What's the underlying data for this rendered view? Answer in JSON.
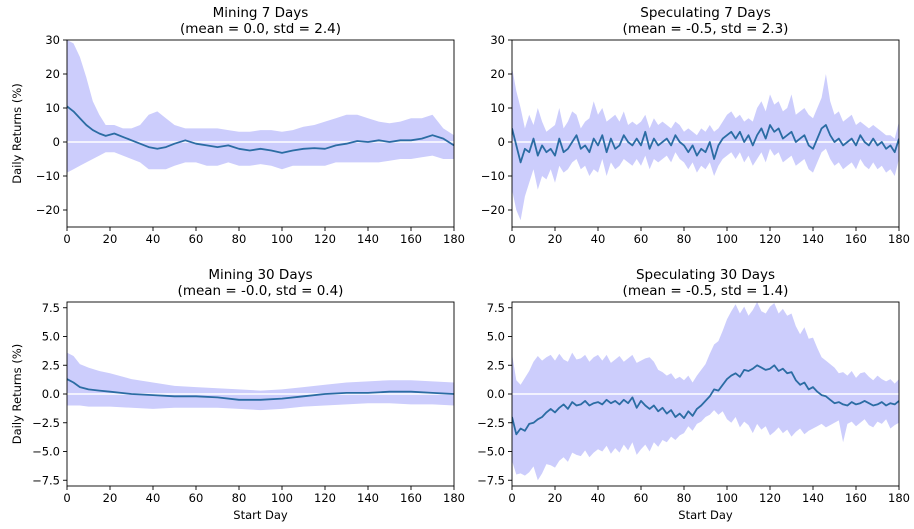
{
  "chart_data": [
    {
      "type": "line",
      "title": "Mining 7 Days",
      "subtitle": "(mean = 0.0, std = 2.4)",
      "xlabel": "",
      "ylabel": "Daily Returns (%)",
      "xlim": [
        0,
        180
      ],
      "ylim": [
        -25,
        30
      ],
      "xticks": [
        "0",
        "20",
        "40",
        "60",
        "80",
        "100",
        "120",
        "140",
        "160",
        "180"
      ],
      "yticks": [
        "30",
        "20",
        "10",
        "0",
        "−10",
        "−20"
      ],
      "ytick_values": [
        30,
        20,
        10,
        0,
        -10,
        -20
      ],
      "grid": false,
      "series": [
        {
          "x": [
            0,
            3,
            6,
            9,
            12,
            15,
            18,
            22,
            26,
            30,
            34,
            38,
            42,
            46,
            50,
            55,
            60,
            65,
            70,
            75,
            80,
            85,
            90,
            95,
            100,
            105,
            110,
            115,
            120,
            125,
            130,
            135,
            140,
            145,
            150,
            155,
            160,
            165,
            170,
            175,
            180
          ],
          "y": [
            10.5,
            9,
            7,
            5,
            3.5,
            2.5,
            1.8,
            2.5,
            1.5,
            0.5,
            -0.5,
            -1.5,
            -2.0,
            -1.5,
            -0.5,
            0.5,
            -0.5,
            -1.0,
            -1.5,
            -1.0,
            -2.0,
            -2.5,
            -2.0,
            -2.5,
            -3.2,
            -2.5,
            -2.0,
            -1.8,
            -2.0,
            -1.0,
            -0.5,
            0.3,
            0.0,
            0.5,
            0.0,
            0.5,
            0.5,
            1.0,
            2.0,
            1.0,
            -1.0
          ]
        }
      ],
      "band": {
        "upper": [
          30,
          29,
          25,
          19,
          12,
          8,
          5,
          5,
          4,
          4,
          5,
          8,
          9,
          7,
          5,
          4,
          4,
          4,
          4,
          3.5,
          3,
          3,
          3.5,
          3.5,
          3,
          3.5,
          4.5,
          5,
          6,
          7,
          8,
          8,
          7,
          6,
          5.5,
          6,
          7,
          7,
          8,
          4,
          2
        ],
        "lower": [
          -9,
          -8,
          -7,
          -6,
          -5,
          -4,
          -3,
          -3,
          -4,
          -5,
          -6,
          -8,
          -8,
          -8,
          -7,
          -6,
          -6,
          -7,
          -7,
          -6,
          -7,
          -7,
          -6.5,
          -7,
          -8,
          -7,
          -7,
          -7,
          -7,
          -6,
          -6,
          -6,
          -6,
          -6,
          -5.5,
          -5,
          -5,
          -4.5,
          -4,
          -5,
          -5
        ]
      },
      "colors": {
        "line": "#2b6ca3",
        "band": "#cccdfc",
        "zero": "#ffffff"
      }
    },
    {
      "type": "line",
      "title": "Speculating 7 Days",
      "subtitle": "(mean = -0.5, std = 2.3)",
      "xlabel": "",
      "ylabel": "",
      "xlim": [
        0,
        180
      ],
      "ylim": [
        -25,
        30
      ],
      "xticks": [
        "0",
        "20",
        "40",
        "60",
        "80",
        "100",
        "120",
        "140",
        "160",
        "180"
      ],
      "yticks": [
        "30",
        "20",
        "10",
        "0",
        "−10",
        "−20"
      ],
      "ytick_values": [
        30,
        20,
        10,
        0,
        -10,
        -20
      ],
      "grid": false,
      "series": [
        {
          "x": [
            0,
            2,
            4,
            6,
            8,
            10,
            12,
            14,
            16,
            18,
            20,
            22,
            24,
            26,
            28,
            30,
            32,
            34,
            36,
            38,
            40,
            42,
            44,
            46,
            48,
            50,
            52,
            54,
            56,
            58,
            60,
            62,
            64,
            66,
            68,
            70,
            72,
            74,
            76,
            78,
            80,
            82,
            84,
            86,
            88,
            90,
            92,
            94,
            96,
            98,
            100,
            102,
            104,
            106,
            108,
            110,
            112,
            114,
            116,
            118,
            120,
            122,
            124,
            126,
            128,
            130,
            132,
            134,
            136,
            138,
            140,
            142,
            144,
            146,
            148,
            150,
            152,
            154,
            156,
            158,
            160,
            162,
            164,
            166,
            168,
            170,
            172,
            174,
            176,
            178,
            180
          ],
          "y": [
            4,
            -1,
            -6,
            -2,
            -3,
            1,
            -4,
            -1,
            -3,
            -2,
            -4,
            1,
            -3,
            -2,
            0,
            2,
            -2,
            -1,
            -3,
            1,
            -1,
            2,
            -3,
            1,
            -2,
            -1,
            2,
            0,
            -1,
            1,
            -1,
            3,
            -2,
            1,
            -1,
            0,
            1,
            -1,
            2,
            0,
            -1,
            -3,
            -1,
            -4,
            -2,
            -3,
            0,
            -5,
            -1,
            1,
            2,
            3,
            1,
            3,
            0,
            2,
            -1,
            2,
            4,
            1,
            5,
            3,
            4,
            1,
            2,
            3,
            0,
            1,
            2,
            -1,
            -2,
            1,
            4,
            5,
            2,
            0,
            1,
            -1,
            0,
            1,
            -1,
            2,
            0,
            -1,
            1,
            -1,
            0,
            -2,
            -1,
            -3,
            1
          ]
        }
      ],
      "band": {
        "upper": [
          22,
          15,
          10,
          4,
          8,
          5,
          10,
          6,
          3,
          4,
          5,
          10,
          4,
          6,
          9,
          8,
          4,
          6,
          7,
          12,
          8,
          10,
          6,
          7,
          8,
          6,
          9,
          5,
          6,
          5,
          6,
          8,
          4,
          7,
          5,
          6,
          5,
          4,
          6,
          5,
          3,
          4,
          3,
          2,
          4,
          3,
          5,
          3,
          4,
          6,
          8,
          9,
          7,
          8,
          6,
          7,
          6,
          10,
          12,
          9,
          14,
          11,
          12,
          9,
          10,
          14,
          8,
          9,
          10,
          8,
          7,
          10,
          13,
          20,
          12,
          8,
          9,
          6,
          7,
          8,
          5,
          6,
          5,
          4,
          5,
          4,
          3,
          2,
          2,
          1,
          6
        ],
        "lower": [
          -14,
          -20,
          -23,
          -16,
          -12,
          -8,
          -14,
          -10,
          -11,
          -8,
          -12,
          -7,
          -9,
          -8,
          -6,
          -5,
          -8,
          -7,
          -10,
          -8,
          -9,
          -5,
          -10,
          -6,
          -8,
          -7,
          -5,
          -6,
          -7,
          -5,
          -7,
          -4,
          -8,
          -5,
          -6,
          -5,
          -4,
          -6,
          -3,
          -5,
          -6,
          -8,
          -6,
          -9,
          -7,
          -8,
          -6,
          -10,
          -7,
          -5,
          -4,
          -3,
          -5,
          -3,
          -6,
          -4,
          -7,
          -5,
          -3,
          -6,
          -2,
          -4,
          -3,
          -6,
          -5,
          -4,
          -7,
          -6,
          -5,
          -8,
          -9,
          -6,
          -3,
          -2,
          -5,
          -7,
          -6,
          -8,
          -7,
          -6,
          -8,
          -5,
          -7,
          -8,
          -6,
          -8,
          -7,
          -9,
          -8,
          -10,
          -5
        ]
      },
      "colors": {
        "line": "#2b6ca3",
        "band": "#cccdfc",
        "zero": "#ffffff"
      }
    },
    {
      "type": "line",
      "title": "Mining 30 Days",
      "subtitle": "(mean = -0.0, std = 0.4)",
      "xlabel": "Start Day",
      "ylabel": "Daily Returns (%)",
      "xlim": [
        0,
        180
      ],
      "ylim": [
        -8,
        8
      ],
      "xticks": [
        "0",
        "20",
        "40",
        "60",
        "80",
        "100",
        "120",
        "140",
        "160",
        "180"
      ],
      "yticks": [
        "7.5",
        "5.0",
        "2.5",
        "0.0",
        "−2.5",
        "−5.0",
        "−7.5"
      ],
      "ytick_values": [
        7.5,
        5.0,
        2.5,
        0.0,
        -2.5,
        -5.0,
        -7.5
      ],
      "grid": false,
      "series": [
        {
          "x": [
            0,
            3,
            6,
            10,
            15,
            20,
            30,
            40,
            50,
            60,
            70,
            80,
            90,
            100,
            110,
            120,
            130,
            140,
            150,
            160,
            170,
            180
          ],
          "y": [
            1.3,
            1.0,
            0.6,
            0.4,
            0.3,
            0.2,
            0.0,
            -0.1,
            -0.2,
            -0.2,
            -0.3,
            -0.5,
            -0.5,
            -0.4,
            -0.2,
            0.0,
            0.1,
            0.1,
            0.2,
            0.2,
            0.1,
            0.0
          ]
        }
      ],
      "band": {
        "upper": [
          3.6,
          3.3,
          2.6,
          2.3,
          2.0,
          1.8,
          1.3,
          1.0,
          0.7,
          0.6,
          0.5,
          0.4,
          0.3,
          0.4,
          0.6,
          0.8,
          1.0,
          1.1,
          1.2,
          1.2,
          1.1,
          1.0
        ],
        "lower": [
          -1.0,
          -1.0,
          -1.0,
          -1.1,
          -1.1,
          -1.1,
          -1.2,
          -1.3,
          -1.2,
          -1.2,
          -1.2,
          -1.3,
          -1.4,
          -1.3,
          -1.1,
          -1.0,
          -0.9,
          -0.8,
          -0.8,
          -0.9,
          -0.9,
          -1.0
        ]
      },
      "colors": {
        "line": "#2b6ca3",
        "band": "#cccdfc",
        "zero": "#ffffff"
      }
    },
    {
      "type": "line",
      "title": "Speculating 30 Days",
      "subtitle": "(mean = -0.5, std = 1.4)",
      "xlabel": "Start Day",
      "ylabel": "",
      "xlim": [
        0,
        180
      ],
      "ylim": [
        -8,
        8
      ],
      "xticks": [
        "0",
        "20",
        "40",
        "60",
        "80",
        "100",
        "120",
        "140",
        "160",
        "180"
      ],
      "yticks": [
        "7.5",
        "5.0",
        "2.5",
        "0.0",
        "−2.5",
        "−5.0",
        "−7.5"
      ],
      "ytick_values": [
        7.5,
        5.0,
        2.5,
        0.0,
        -2.5,
        -5.0,
        -7.5
      ],
      "grid": false,
      "series": [
        {
          "x": [
            0,
            2,
            4,
            6,
            8,
            10,
            12,
            14,
            16,
            18,
            20,
            22,
            24,
            26,
            28,
            30,
            32,
            34,
            36,
            38,
            40,
            42,
            44,
            46,
            48,
            50,
            52,
            54,
            56,
            58,
            60,
            62,
            64,
            66,
            68,
            70,
            72,
            74,
            76,
            78,
            80,
            82,
            84,
            86,
            88,
            90,
            92,
            94,
            96,
            98,
            100,
            102,
            104,
            106,
            108,
            110,
            112,
            114,
            116,
            118,
            120,
            122,
            124,
            126,
            128,
            130,
            132,
            134,
            136,
            138,
            140,
            142,
            144,
            146,
            148,
            150,
            152,
            154,
            156,
            158,
            160,
            162,
            164,
            166,
            168,
            170,
            172,
            174,
            176,
            178,
            180
          ],
          "y": [
            -2.0,
            -3.5,
            -3.0,
            -3.2,
            -2.6,
            -2.5,
            -2.2,
            -2.0,
            -1.6,
            -1.3,
            -1.6,
            -1.2,
            -0.9,
            -1.3,
            -0.7,
            -1.0,
            -0.9,
            -0.6,
            -1.0,
            -0.8,
            -0.7,
            -0.9,
            -0.5,
            -0.8,
            -0.6,
            -0.9,
            -0.5,
            -0.8,
            -0.3,
            -1.2,
            -0.6,
            -1.0,
            -1.3,
            -1.0,
            -1.5,
            -1.2,
            -1.7,
            -1.4,
            -2.0,
            -1.7,
            -2.1,
            -1.5,
            -1.9,
            -1.3,
            -1.0,
            -0.6,
            -0.2,
            0.4,
            0.3,
            0.8,
            1.3,
            1.6,
            1.8,
            1.5,
            2.1,
            2.0,
            2.2,
            2.5,
            2.3,
            2.1,
            2.2,
            2.5,
            2.0,
            2.2,
            1.8,
            1.9,
            1.2,
            0.8,
            1.0,
            0.4,
            0.6,
            0.2,
            -0.1,
            -0.2,
            -0.5,
            -0.8,
            -0.7,
            -0.9,
            -1.0,
            -0.7,
            -0.9,
            -0.8,
            -0.6,
            -0.8,
            -1.0,
            -0.9,
            -0.7,
            -1.0,
            -0.8,
            -0.9,
            -0.6
          ]
        }
      ],
      "band": {
        "upper": [
          3.5,
          1.2,
          0.8,
          1.4,
          2.0,
          2.8,
          3.3,
          2.9,
          3.2,
          3.4,
          2.9,
          3.5,
          3.0,
          2.8,
          3.6,
          3.0,
          3.1,
          3.4,
          2.8,
          3.2,
          3.4,
          2.9,
          3.4,
          2.7,
          3.0,
          3.3,
          2.8,
          3.1,
          3.4,
          2.7,
          2.9,
          3.1,
          3.2,
          2.8,
          2.1,
          1.9,
          1.6,
          1.8,
          1.3,
          1.5,
          1.2,
          1.6,
          1.0,
          1.6,
          2.1,
          2.6,
          3.5,
          4.3,
          4.6,
          5.5,
          6.5,
          7.2,
          7.8,
          7.0,
          7.6,
          6.8,
          7.3,
          8.0,
          7.2,
          7.0,
          7.6,
          7.9,
          7.0,
          7.4,
          6.8,
          7.0,
          5.9,
          5.2,
          5.8,
          4.8,
          4.9,
          4.0,
          3.2,
          2.9,
          2.6,
          2.3,
          1.8,
          1.9,
          1.6,
          2.0,
          1.4,
          1.8,
          1.9,
          1.5,
          1.2,
          1.6,
          1.3,
          1.1,
          1.3,
          0.9,
          1.3
        ],
        "lower": [
          -5.8,
          -7.0,
          -6.9,
          -7.1,
          -6.8,
          -6.3,
          -7.5,
          -6.9,
          -6.1,
          -6.2,
          -6.4,
          -5.8,
          -5.5,
          -5.9,
          -5.1,
          -5.3,
          -5.4,
          -4.9,
          -5.5,
          -5.1,
          -4.8,
          -5.0,
          -4.5,
          -5.2,
          -4.7,
          -5.1,
          -4.4,
          -4.9,
          -4.2,
          -5.3,
          -4.8,
          -4.4,
          -5.0,
          -4.2,
          -4.6,
          -4.0,
          -4.2,
          -3.7,
          -4.0,
          -3.6,
          -3.4,
          -2.8,
          -3.2,
          -2.6,
          -2.4,
          -2.0,
          -1.8,
          -1.4,
          -1.8,
          -1.5,
          -2.2,
          -2.5,
          -2.0,
          -2.9,
          -2.4,
          -2.7,
          -3.4,
          -2.6,
          -3.1,
          -2.8,
          -3.6,
          -3.3,
          -2.9,
          -3.4,
          -3.1,
          -3.7,
          -3.3,
          -3.0,
          -3.5,
          -3.2,
          -3.0,
          -2.8,
          -2.6,
          -2.9,
          -2.7,
          -2.5,
          -2.3,
          -4.2,
          -2.6,
          -2.4,
          -2.8,
          -2.5,
          -2.2,
          -2.7,
          -2.9,
          -2.4,
          -2.6,
          -2.2,
          -3.0,
          -2.7,
          -2.5
        ]
      },
      "colors": {
        "line": "#2b6ca3",
        "band": "#cccdfc",
        "zero": "#ffffff"
      }
    }
  ]
}
